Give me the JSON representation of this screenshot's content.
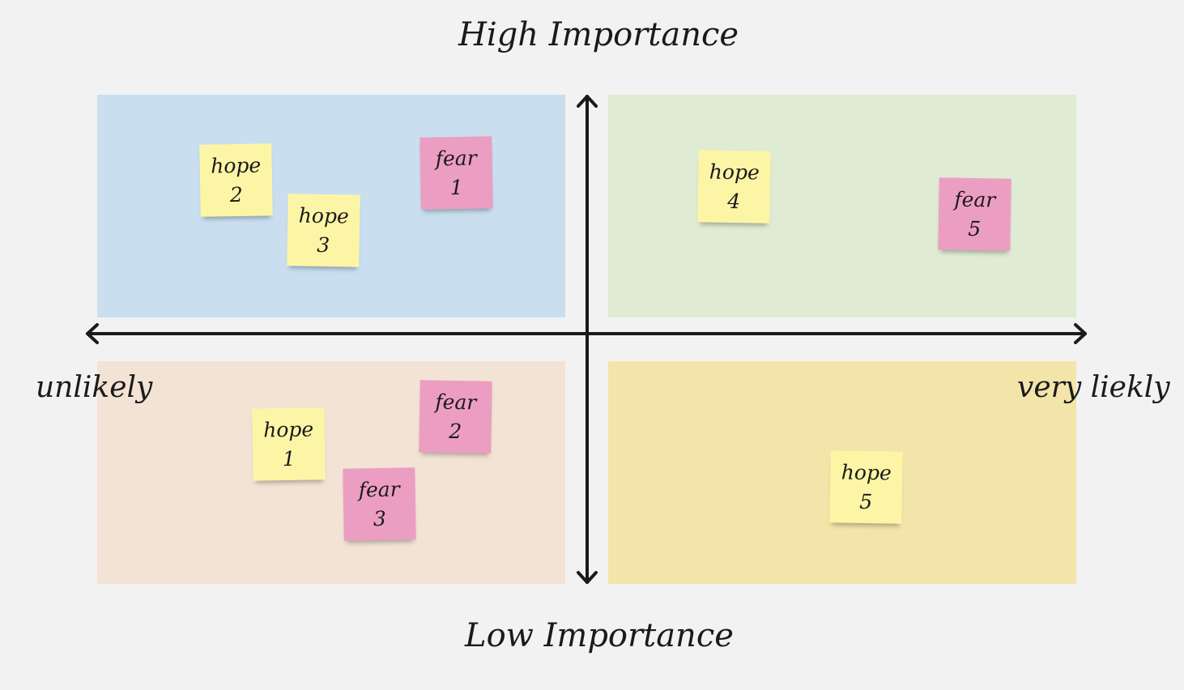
{
  "axes": {
    "top": "High Importance",
    "bottom": "Low Importance",
    "left": "unlikely",
    "right": "very liekly"
  },
  "quadrants": [
    {
      "color": "#c9dff0"
    },
    {
      "color": "#dfebd2"
    },
    {
      "color": "#f3e3d5"
    },
    {
      "color": "#f3e4a9"
    }
  ],
  "notes": [
    {
      "label": "hope",
      "number": 2,
      "color": "#fdf5a6"
    },
    {
      "label": "hope",
      "number": 3,
      "color": "#fdf5a6"
    },
    {
      "label": "fear",
      "number": 1,
      "color": "#ec9ec2"
    },
    {
      "label": "hope",
      "number": 4,
      "color": "#fdf5a6"
    },
    {
      "label": "fear",
      "number": 5,
      "color": "#ec9ec2"
    },
    {
      "label": "hope",
      "number": 1,
      "color": "#fdf5a6"
    },
    {
      "label": "fear",
      "number": 2,
      "color": "#ec9ec2"
    },
    {
      "label": "fear",
      "number": 3,
      "color": "#ec9ec2"
    },
    {
      "label": "hope",
      "number": 5,
      "color": "#fdf5a6"
    }
  ]
}
